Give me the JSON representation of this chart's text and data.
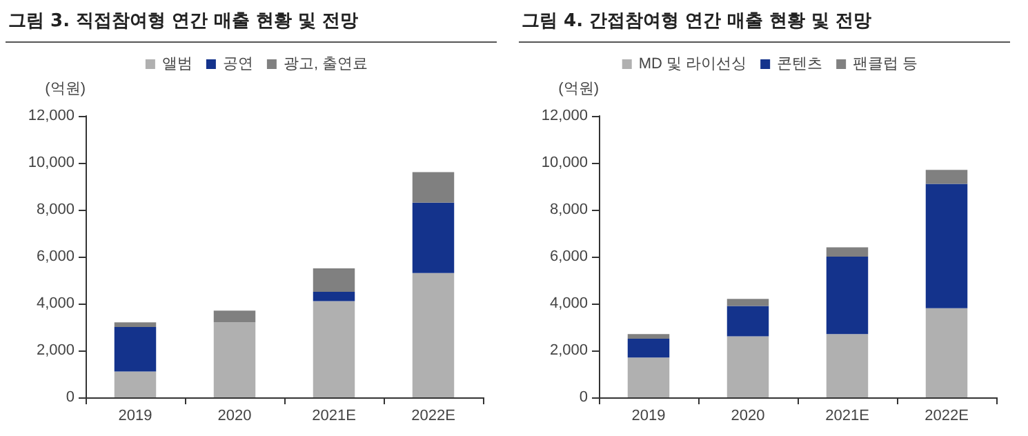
{
  "chart_data": [
    {
      "type": "bar",
      "title": "그림 3. 직접참여형 연간 매출 현황 및 전망",
      "ylabel": "(억원)",
      "categories": [
        "2019",
        "2020",
        "2021E",
        "2022E"
      ],
      "stacked": true,
      "ylim": [
        0,
        12000
      ],
      "yticks": [
        0,
        {
          "value": 2000,
          "label": "2,000"
        },
        {
          "value": 4000,
          "label": "4,000"
        },
        {
          "value": 6000,
          "label": "6,000"
        },
        {
          "value": 8000,
          "label": "8,000"
        },
        {
          "value": 10000,
          "label": "10,000"
        },
        {
          "value": 12000,
          "label": "12,000"
        }
      ],
      "grid": false,
      "legend": "top",
      "series": [
        {
          "name": "앨범",
          "color": "#b0b0b0",
          "values": [
            1100,
            3200,
            4100,
            5300
          ]
        },
        {
          "name": "공연",
          "color": "#14338c",
          "values": [
            1900,
            null,
            400,
            3000
          ]
        },
        {
          "name": "광고, 출연료",
          "color": "#808080",
          "values": [
            200,
            500,
            1000,
            1300
          ]
        }
      ]
    },
    {
      "type": "bar",
      "title": "그림 4. 간접참여형 연간 매출 현황 및 전망",
      "ylabel": "(억원)",
      "categories": [
        "2019",
        "2020",
        "2021E",
        "2022E"
      ],
      "stacked": true,
      "ylim": [
        0,
        12000
      ],
      "yticks": [
        0,
        {
          "value": 2000,
          "label": "2,000"
        },
        {
          "value": 4000,
          "label": "4,000"
        },
        {
          "value": 6000,
          "label": "6,000"
        },
        {
          "value": 8000,
          "label": "8,000"
        },
        {
          "value": 10000,
          "label": "10,000"
        },
        {
          "value": 12000,
          "label": "12,000"
        }
      ],
      "grid": false,
      "legend": "top",
      "series": [
        {
          "name": "MD 및 라이선싱",
          "color": "#b0b0b0",
          "values": [
            1700,
            2600,
            2700,
            3800
          ]
        },
        {
          "name": "콘텐츠",
          "color": "#14338c",
          "values": [
            800,
            1300,
            3300,
            5300
          ]
        },
        {
          "name": "팬클럽 등",
          "color": "#808080",
          "values": [
            200,
            300,
            400,
            600
          ]
        }
      ]
    }
  ]
}
